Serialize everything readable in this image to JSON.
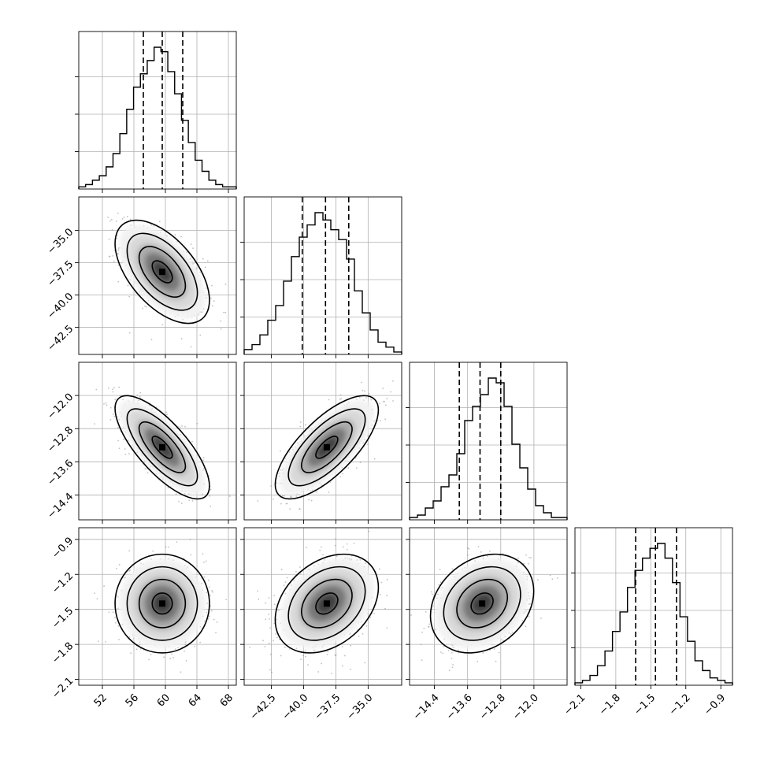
{
  "figure": {
    "type": "corner-plot",
    "n_params": 4,
    "quantiles": [
      0.16,
      0.5,
      0.84
    ],
    "color": "#000000"
  },
  "chart_data": {
    "type": "corner",
    "params": [
      {
        "range": [
          49,
          69
        ],
        "mean": 59.6,
        "std": 2.55,
        "ticks": [
          52,
          56,
          60,
          64,
          68
        ],
        "tick_labels": [
          "52",
          "56",
          "60",
          "64",
          "68"
        ],
        "quantile_values": [
          57.2,
          59.6,
          62.2
        ],
        "hist": [
          1,
          2,
          4,
          6,
          10,
          16,
          25,
          36,
          46,
          52,
          58,
          64,
          62,
          53,
          43,
          31,
          21,
          13,
          8,
          4,
          2,
          1,
          1
        ]
      },
      {
        "range": [
          -44.6,
          -32.4
        ],
        "mean": -38.2,
        "std": 1.7,
        "ticks": [
          -42.5,
          -40.0,
          -37.5,
          -35.0
        ],
        "tick_labels": [
          "−42.5",
          "−40.0",
          "−37.5",
          "−35.0"
        ],
        "quantile_values": [
          -40.1,
          -38.3,
          -36.5
        ],
        "hist": [
          2,
          4,
          8,
          14,
          20,
          30,
          40,
          48,
          53,
          58,
          55,
          51,
          47,
          39,
          26,
          17,
          10,
          5,
          3,
          1
        ]
      },
      {
        "range": [
          -15.0,
          -11.2
        ],
        "mean": -13.25,
        "std": 0.53,
        "ticks": [
          -14.4,
          -13.6,
          -12.8,
          -12.0
        ],
        "tick_labels": [
          "−14.4",
          "−13.6",
          "−12.8",
          "−12.0"
        ],
        "quantile_values": [
          -13.8,
          -13.3,
          -12.8
        ],
        "hist": [
          1,
          2,
          5,
          8,
          14,
          19,
          28,
          42,
          48,
          53,
          60,
          58,
          48,
          32,
          22,
          13,
          6,
          3,
          1,
          1
        ]
      },
      {
        "range": [
          -2.15,
          -0.8
        ],
        "mean": -1.45,
        "std": 0.18,
        "ticks": [
          -2.1,
          -1.8,
          -1.5,
          -1.2,
          -0.9
        ],
        "tick_labels": [
          "−2.1",
          "−1.8",
          "−1.5",
          "−1.2",
          "−0.9"
        ],
        "quantile_values": [
          -1.63,
          -1.46,
          -1.28
        ],
        "hist": [
          1,
          2,
          4,
          8,
          14,
          22,
          30,
          40,
          47,
          52,
          56,
          58,
          52,
          42,
          28,
          18,
          10,
          6,
          3,
          2,
          1
        ]
      }
    ],
    "correlations": [
      {
        "row": 1,
        "col": 0,
        "rho": -0.55
      },
      {
        "row": 2,
        "col": 0,
        "rho": -0.75
      },
      {
        "row": 2,
        "col": 1,
        "rho": 0.72
      },
      {
        "row": 3,
        "col": 0,
        "rho": 0.0
      },
      {
        "row": 3,
        "col": 1,
        "rho": 0.33
      },
      {
        "row": 3,
        "col": 2,
        "rho": 0.25
      }
    ],
    "grid": true,
    "title": "",
    "axis_labels": []
  }
}
